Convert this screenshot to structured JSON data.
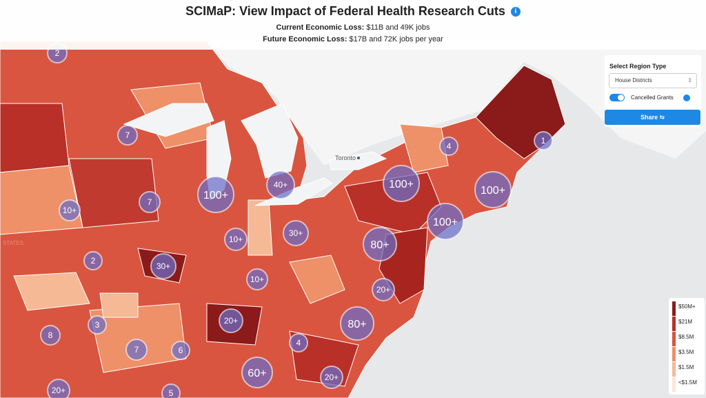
{
  "header": {
    "title": "SCIMaP: View Impact of Federal Health Research Cuts",
    "current_label": "Current Economic Loss:",
    "current_value": "$11B and 49K jobs",
    "future_label": "Future Economic Loss:",
    "future_value": "$17B and 72K jobs per year"
  },
  "controls": {
    "region_label": "Select Region Type",
    "region_value": "House Districts",
    "toggle_label": "Cancelled Grants",
    "share": "Share"
  },
  "map": {
    "city": "Toronto",
    "region_text": "STATES",
    "clusters": [
      "2",
      "7",
      "100+",
      "40+",
      "7",
      "10+",
      "10+",
      "2",
      "30+",
      "30+",
      "10+",
      "80+",
      "100+",
      "100+",
      "100+",
      "4",
      "1",
      "20+",
      "80+",
      "20+",
      "3",
      "8",
      "7",
      "6",
      "4",
      "60+",
      "20+",
      "20+",
      "5"
    ]
  },
  "legend": {
    "items": [
      {
        "label": "$50M+",
        "color": "#8b1a1a"
      },
      {
        "label": "$21M",
        "color": "#b83028"
      },
      {
        "label": "$8.5M",
        "color": "#d9533c"
      },
      {
        "label": "$3.5M",
        "color": "#ee9068"
      },
      {
        "label": "$1.5M",
        "color": "#f6b995"
      },
      {
        "label": "<$1.5M",
        "color": "#fbe6d6"
      }
    ]
  }
}
